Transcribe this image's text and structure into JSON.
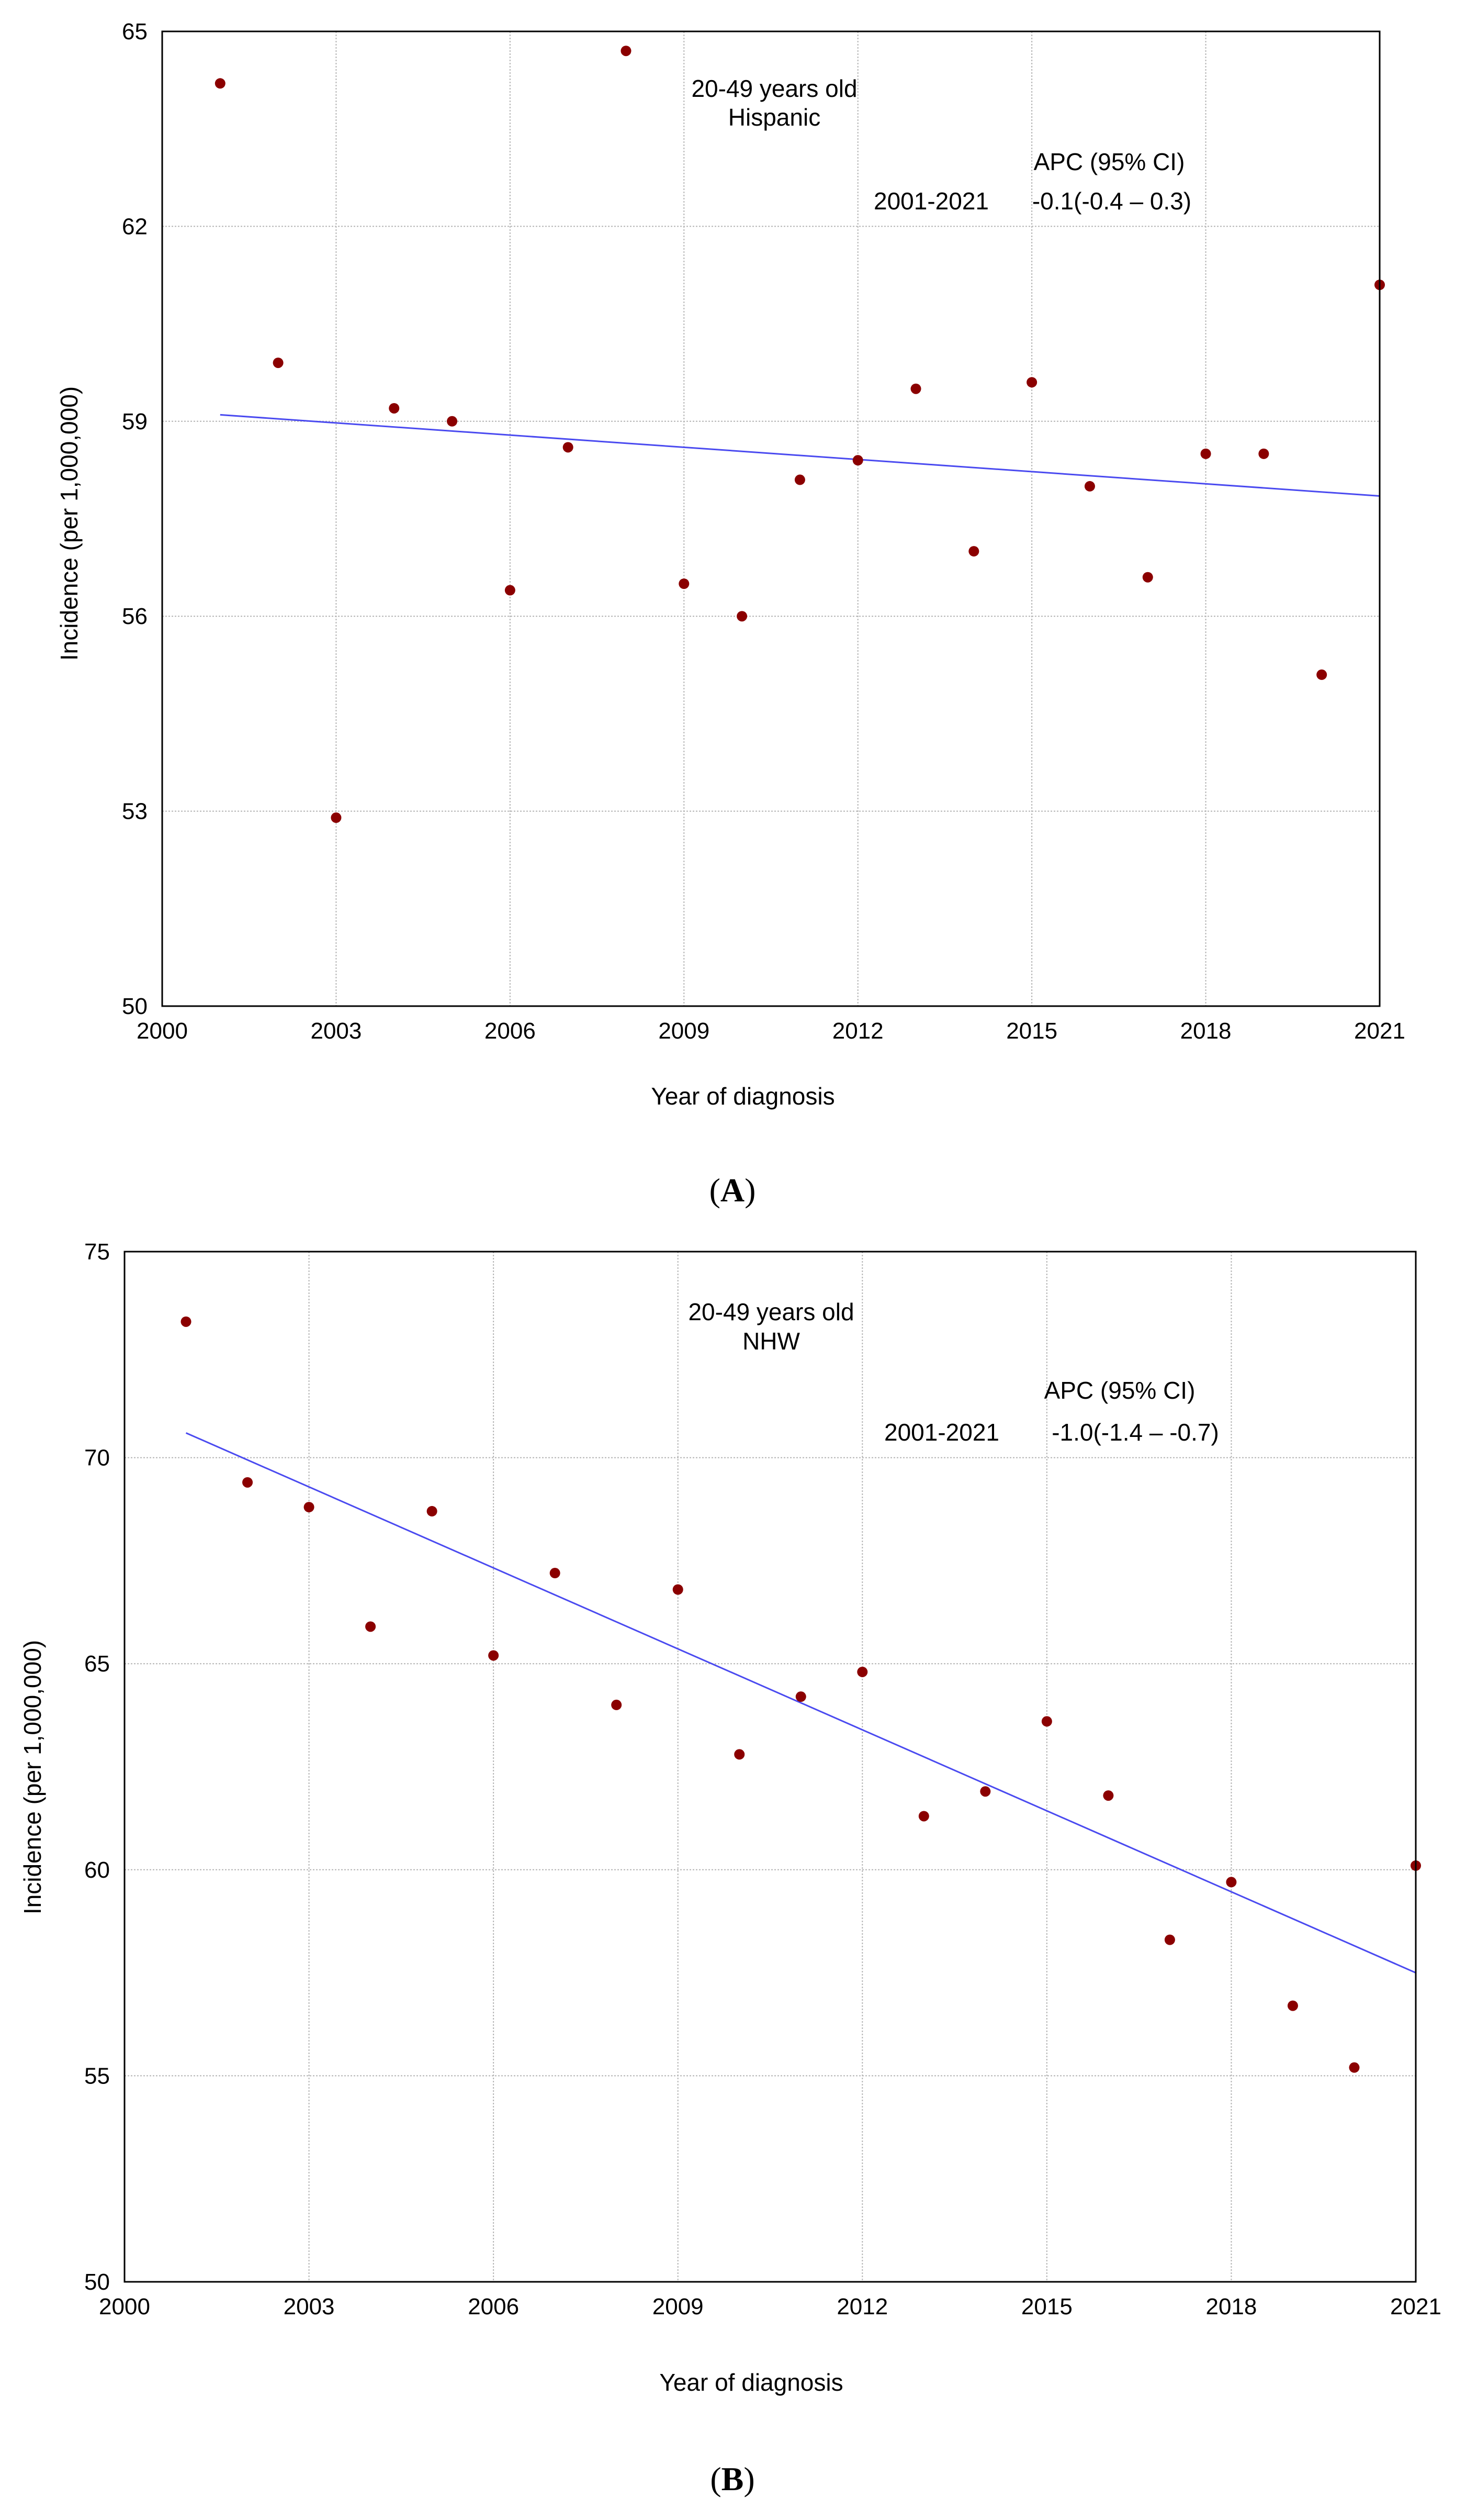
{
  "charts": [
    {
      "type": "scatter",
      "panel_label": "(A)",
      "panel_letter": "A",
      "title_line1": "20-49 years old",
      "title_line2": "Hispanic",
      "apc_header": "APC (95% CI)",
      "apc_period": "2001-2021",
      "apc_value": "-0.1(-0.4 – 0.3)",
      "xlabel": "Year of diagnosis",
      "ylabel": "Incidence (per 1,000,000)",
      "xlim": [
        2000,
        2021
      ],
      "ylim": [
        50,
        65
      ],
      "xticks": [
        2000,
        2003,
        2006,
        2009,
        2012,
        2015,
        2018,
        2021
      ],
      "yticks": [
        50,
        53,
        56,
        59,
        62,
        65
      ],
      "x": [
        2001,
        2002,
        2003,
        2004,
        2005,
        2006,
        2007,
        2008,
        2009,
        2010,
        2011,
        2012,
        2013,
        2014,
        2015,
        2016,
        2017,
        2018,
        2019,
        2020,
        2021
      ],
      "values": [
        64.2,
        59.9,
        52.9,
        59.2,
        59.0,
        56.4,
        58.6,
        64.7,
        56.5,
        56.0,
        58.1,
        58.4,
        59.5,
        57.0,
        59.6,
        58.0,
        56.6,
        58.5,
        58.5,
        55.1,
        61.1
      ],
      "trend": {
        "x": [
          2001,
          2021
        ],
        "y": [
          59.1,
          57.85
        ]
      },
      "colors": {
        "points": "#8b0000",
        "trend": "#4a4af0",
        "grid": "#b4b4b4"
      }
    },
    {
      "type": "scatter",
      "panel_label": "(B)",
      "panel_letter": "B",
      "title_line1": "20-49 years old",
      "title_line2": "NHW",
      "apc_header": "APC (95% CI)",
      "apc_period": "2001-2021",
      "apc_value": "-1.0(-1.4 – -0.7)",
      "xlabel": "Year of diagnosis",
      "ylabel": "Incidence (per 1,000,000)",
      "xlim": [
        2000,
        2021
      ],
      "ylim": [
        50,
        75
      ],
      "xticks": [
        2000,
        2003,
        2006,
        2009,
        2012,
        2015,
        2018,
        2021
      ],
      "yticks": [
        50,
        55,
        60,
        65,
        70,
        75
      ],
      "x": [
        2001,
        2002,
        2003,
        2004,
        2005,
        2006,
        2007,
        2008,
        2009,
        2010,
        2011,
        2012,
        2013,
        2014,
        2015,
        2016,
        2017,
        2018,
        2019,
        2020,
        2021
      ],
      "values": [
        73.3,
        69.4,
        68.8,
        65.9,
        68.7,
        65.2,
        67.2,
        64.0,
        66.8,
        62.8,
        64.2,
        64.8,
        61.3,
        61.9,
        63.6,
        61.8,
        58.3,
        59.7,
        56.7,
        55.2,
        60.1
      ],
      "trend": {
        "x": [
          2001,
          2021
        ],
        "y": [
          70.6,
          57.5
        ]
      },
      "colors": {
        "points": "#8b0000",
        "trend": "#4a4af0",
        "grid": "#b4b4b4"
      }
    }
  ]
}
